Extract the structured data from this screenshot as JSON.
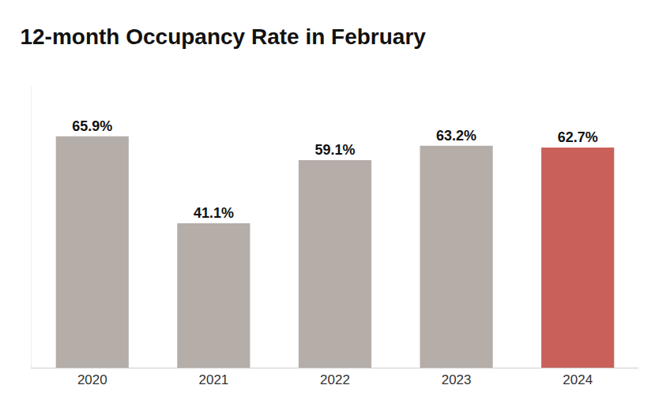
{
  "chart_data": {
    "type": "bar",
    "title": "12-month Occupancy Rate in February",
    "categories": [
      "2020",
      "2021",
      "2022",
      "2023",
      "2024"
    ],
    "values": [
      65.9,
      41.1,
      59.1,
      63.2,
      62.7
    ],
    "value_labels": [
      "65.9%",
      "41.1%",
      "59.1%",
      "63.2%",
      "62.7%"
    ],
    "colors": [
      "#b5ada8",
      "#b5ada8",
      "#b5ada8",
      "#b5ada8",
      "#c9615a"
    ],
    "ylim": [
      0,
      80
    ],
    "data_labels": true,
    "tick_labels": "x",
    "grid": false
  }
}
